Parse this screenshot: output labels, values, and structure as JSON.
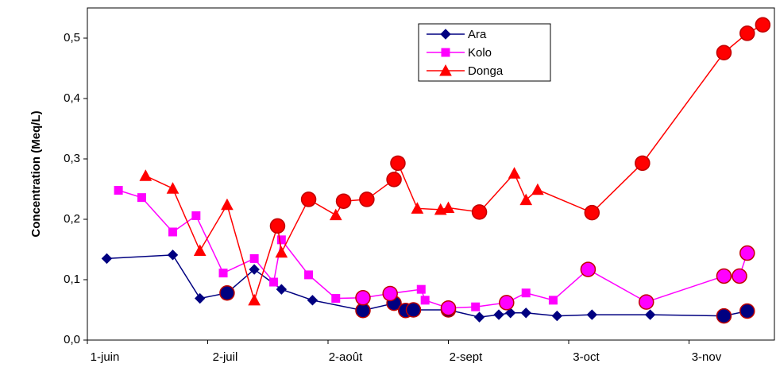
{
  "chart_data": {
    "type": "line",
    "y_label": "Concentration (Meq/L)",
    "xlim": [
      0,
      177
    ],
    "xticks": [
      {
        "value": 0,
        "label": "1-juin"
      },
      {
        "value": 31,
        "label": "2-juil"
      },
      {
        "value": 62,
        "label": "2-août"
      },
      {
        "value": 93,
        "label": "2-sept"
      },
      {
        "value": 124,
        "label": "3-oct"
      },
      {
        "value": 155,
        "label": "3-nov"
      }
    ],
    "ylim": [
      0,
      0.55
    ],
    "yticks": [
      {
        "value": 0,
        "label": "0,0"
      },
      {
        "value": 0.1,
        "label": "0,1"
      },
      {
        "value": 0.2,
        "label": "0,2"
      },
      {
        "value": 0.3,
        "label": "0,3"
      },
      {
        "value": 0.4,
        "label": "0,4"
      },
      {
        "value": 0.5,
        "label": "0,5"
      }
    ],
    "grid": false,
    "legend": "top-right",
    "circle_color": "#c00000",
    "series": [
      {
        "name": "Ara",
        "color": "#000080",
        "marker": "diamond",
        "x": [
          5,
          22,
          29,
          36,
          43,
          50,
          58,
          71,
          79,
          82,
          84,
          93,
          101,
          106,
          109,
          113,
          121,
          130,
          145,
          164,
          170
        ],
        "values": [
          0.135,
          0.141,
          0.069,
          0.078,
          0.117,
          0.084,
          0.066,
          0.049,
          0.061,
          0.049,
          0.05,
          0.05,
          0.038,
          0.042,
          0.045,
          0.045,
          0.04,
          0.042,
          0.042,
          0.04,
          0.048
        ],
        "circled": [
          3,
          7,
          8,
          9,
          10,
          11,
          19,
          20
        ]
      },
      {
        "name": "Kolo",
        "color": "#ff00ff",
        "marker": "square",
        "x": [
          8,
          14,
          22,
          28,
          35,
          43,
          48,
          50,
          57,
          64,
          71,
          78,
          86,
          87,
          93,
          100,
          108,
          113,
          120,
          129,
          144,
          164,
          168,
          170
        ],
        "values": [
          0.248,
          0.236,
          0.179,
          0.206,
          0.111,
          0.135,
          0.096,
          0.166,
          0.108,
          0.069,
          0.07,
          0.077,
          0.084,
          0.066,
          0.053,
          0.055,
          0.062,
          0.078,
          0.066,
          0.117,
          0.063,
          0.106,
          0.106,
          0.144
        ],
        "circled": [
          10,
          11,
          14,
          16,
          19,
          20,
          21,
          22,
          23
        ]
      },
      {
        "name": "Donga",
        "color": "#ff0000",
        "marker": "triangle",
        "x": [
          15,
          22,
          29,
          36,
          43,
          49,
          50,
          57,
          64,
          66,
          72,
          79,
          80,
          85,
          91,
          93,
          101,
          110,
          113,
          116,
          130,
          143,
          164,
          170,
          174
        ],
        "values": [
          0.272,
          0.251,
          0.148,
          0.224,
          0.066,
          0.189,
          0.145,
          0.233,
          0.207,
          0.23,
          0.233,
          0.266,
          0.293,
          0.218,
          0.216,
          0.219,
          0.212,
          0.276,
          0.232,
          0.249,
          0.211,
          0.293,
          0.476,
          0.508,
          0.522
        ],
        "circled": [
          5,
          7,
          9,
          10,
          11,
          12,
          16,
          20,
          21,
          22,
          23,
          24
        ]
      }
    ]
  }
}
